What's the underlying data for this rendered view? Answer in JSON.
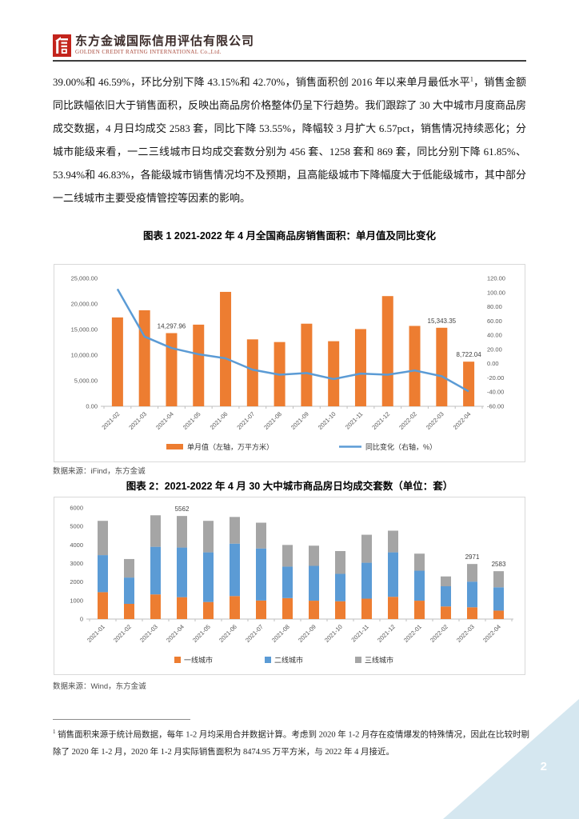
{
  "header": {
    "company_cn": "东方金诚国际信用评估有限公司",
    "company_en": "GOLDEN CREDIT RATING INTERNATIONAL Co.,Ltd."
  },
  "body": {
    "p_before_sup": "39.00%和 46.59%，环比分别下降 43.15%和 42.70%，销售面积创 2016 年以来单月最低水平",
    "p_sup": "1",
    "p_after_sup": "，销售金额同比跌幅依旧大于销售面积，反映出商品房价格整体仍呈下行趋势。我们跟踪了 30 大中城市月度商品房成交数据，4 月日均成交 2583 套，同比下降 53.55%，降幅较 3 月扩大 6.57pct，销售情况持续恶化；分城市能级来看，一二三线城市日均成交套数分别为 456 套、1258 套和 869 套，同比分别下降 61.85%、53.94%和 46.83%，各能级城市销售情况均不及预期，且高能级城市下降幅度大于低能级城市，其中部分一二线城市主要受疫情管控等因素的影响。"
  },
  "figure1": {
    "title": "图表 1 2021-2022 年 4 月全国商品房销售面积：单月值及同比变化",
    "source": "数据来源：iFind，东方金诚"
  },
  "figure2": {
    "title": "图表 2：2021-2022 年 4 月 30 大中城市商品房日均成交套数（单位：套）",
    "source": "数据来源：Wind，东方金诚"
  },
  "footnote": {
    "marker": "1",
    "text": " 销售面积来源于统计局数据，每年 1-2 月均采用合并数据计算。考虑到 2020 年 1-2 月存在疫情爆发的特殊情况，因此在比较时剔除了 2020 年 1-2 月，2020 年 1-2 月实际销售面积为 8474.95 万平方米，与 2022 年 4 月接近。"
  },
  "page_number": "2",
  "colors": {
    "bar_orange": "#ED7D31",
    "line_blue": "#5B9BD5",
    "stack_gray": "#A5A5A5",
    "logo_red": "#C3241C",
    "company_en_red": "#A8493B",
    "corner_triangle": "#D5E7F0",
    "axis_text": "#595959",
    "axis_line": "#BFBFBF",
    "chart_border": "#D9D9D9"
  },
  "chart_data": [
    {
      "type": "bar",
      "subtype": "combo-bar-line",
      "title": "图表 1 2021-2022 年 4 月全国商品房销售面积：单月值及同比变化",
      "categories": [
        "2021-02",
        "2021-03",
        "2021-04",
        "2021-05",
        "2021-06",
        "2021-07",
        "2021-08",
        "2021-09",
        "2021-10",
        "2021-11",
        "2021-12",
        "2022-02",
        "2022-03",
        "2022-04"
      ],
      "series": [
        {
          "name": "单月值（左轴，万平方米）",
          "type": "bar",
          "axis": "left",
          "color": "#ED7D31",
          "values": [
            17363,
            18765,
            14297.96,
            15952,
            22355,
            13076,
            12554,
            16139,
            12718,
            15090,
            21530,
            15703,
            15343.35,
            8722.04
          ]
        },
        {
          "name": "同比变化（右轴，%）",
          "type": "line",
          "axis": "right",
          "color": "#5B9BD5",
          "values": [
            104.9,
            38.1,
            21.9,
            13.2,
            7.5,
            -8.5,
            -15.6,
            -13.2,
            -21.7,
            -14.0,
            -15.6,
            -9.6,
            -17.7,
            -39.0
          ]
        }
      ],
      "left_axis": {
        "min": 0,
        "max": 25000,
        "step": 5000,
        "tick_labels": [
          "0.00",
          "5,000.00",
          "10,000.00",
          "15,000.00",
          "20,000.00",
          "25,000.00"
        ]
      },
      "right_axis": {
        "min": -60,
        "max": 120,
        "step": 20,
        "tick_labels": [
          "-60.00",
          "-40.00",
          "-20.00",
          "0.00",
          "20.00",
          "40.00",
          "60.00",
          "80.00",
          "100.00",
          "120.00"
        ]
      },
      "data_labels": [
        {
          "category": "2021-04",
          "text": "14,297.96"
        },
        {
          "category": "2022-03",
          "text": "15,343.35"
        },
        {
          "category": "2022-04",
          "text": "8,722.04"
        }
      ],
      "grid": false,
      "legend_position": "bottom"
    },
    {
      "type": "bar",
      "subtype": "stacked-bar",
      "title": "图表 2：2021-2022 年 4 月 30 大中城市商品房日均成交套数（单位：套）",
      "categories": [
        "2021-01",
        "2021-02",
        "2021-03",
        "2021-04",
        "2021-05",
        "2021-06",
        "2021-07",
        "2021-08",
        "2021-09",
        "2021-10",
        "2021-11",
        "2021-12",
        "2022-01",
        "2022-02",
        "2022-03",
        "2022-04"
      ],
      "series": [
        {
          "name": "一线城市",
          "color": "#ED7D31",
          "values": [
            1450,
            820,
            1330,
            1180,
            920,
            1240,
            1000,
            1130,
            990,
            960,
            1100,
            1200,
            990,
            680,
            635,
            456
          ]
        },
        {
          "name": "二线城市",
          "color": "#5B9BD5",
          "values": [
            2000,
            1420,
            2570,
            2680,
            2680,
            2830,
            2810,
            1700,
            1880,
            1480,
            1940,
            2400,
            1620,
            1090,
            1385,
            1258
          ]
        },
        {
          "name": "三线城市",
          "color": "#A5A5A5",
          "values": [
            1850,
            1000,
            1700,
            1702,
            1700,
            1440,
            1390,
            1170,
            1090,
            1230,
            1510,
            1170,
            920,
            530,
            951,
            869
          ]
        }
      ],
      "y_axis": {
        "min": 0,
        "max": 6000,
        "step": 1000,
        "tick_labels": [
          "0",
          "1000",
          "2000",
          "3000",
          "4000",
          "5000",
          "6000"
        ]
      },
      "data_labels": [
        {
          "category": "2021-04",
          "text": "5562"
        },
        {
          "category": "2022-03",
          "text": "2971"
        },
        {
          "category": "2022-04",
          "text": "2583"
        }
      ],
      "grid": false,
      "legend_position": "bottom"
    }
  ]
}
